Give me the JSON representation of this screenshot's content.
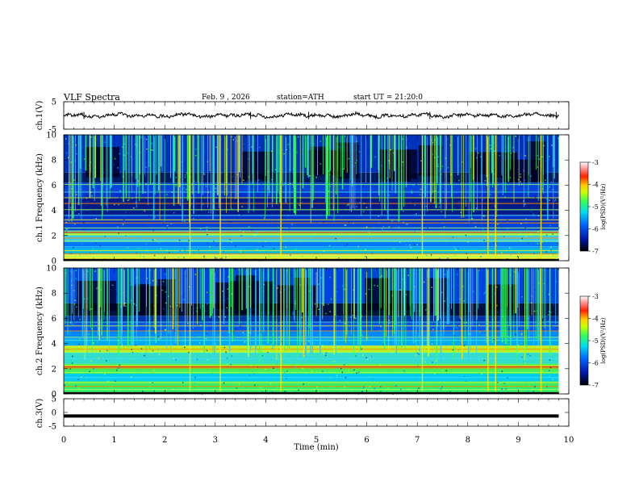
{
  "header": {
    "title": "VLF Spectra",
    "date": "Feb. 9 , 2026",
    "station": "station=ATH",
    "start_ut": "start UT = 21:20:0"
  },
  "chart_data": [
    {
      "type": "line",
      "id": "ch1-waveform",
      "ylabel": "ch.1(V)",
      "ylim": [
        -5,
        5
      ],
      "yticks": [
        "5",
        "-5"
      ],
      "xlim": [
        0,
        10
      ],
      "description_values": "noisy waveform centred near 0 V, amplitude about ±0.7 V"
    },
    {
      "type": "heatmap",
      "id": "ch1-spectrogram",
      "ylabel": "ch.1 Frequency (kHz)",
      "ylim": [
        0,
        10
      ],
      "yticks": [
        "0",
        "2",
        "4",
        "6",
        "8",
        "10"
      ],
      "xlim": [
        0,
        10
      ],
      "colorbar": {
        "label": "log(PSD)(V²/Hz)",
        "range": [
          -7,
          -3
        ],
        "ticks": [
          "-3",
          "-4",
          "-5",
          "-6",
          "-7"
        ]
      }
    },
    {
      "type": "heatmap",
      "id": "ch2-spectrogram",
      "ylabel": "ch.2 Frequency (kHz)",
      "ylim": [
        0,
        10
      ],
      "yticks": [
        "0",
        "2",
        "4",
        "6",
        "8",
        "10"
      ],
      "xlim": [
        0,
        10
      ],
      "colorbar": {
        "label": "log(PSD)(V²/Hz)",
        "range": [
          -7,
          -3
        ],
        "ticks": [
          "-3",
          "-4",
          "-5",
          "-6",
          "-7"
        ]
      }
    },
    {
      "type": "line",
      "id": "ch3-waveform",
      "ylabel": "ch.3(V)",
      "ylim": [
        -5,
        5
      ],
      "yticks": [
        "5",
        "0",
        "-5"
      ],
      "xlim": [
        0,
        10
      ],
      "y": -1.3
    }
  ],
  "xaxis": {
    "label": "Time (min)",
    "ticks": [
      "0",
      "1",
      "2",
      "3",
      "4",
      "5",
      "6",
      "7",
      "8",
      "9",
      "10"
    ],
    "data_end": 9.8
  },
  "colors": {
    "colormap": [
      "#000000",
      "#001a6e",
      "#0033cc",
      "#00aaff",
      "#33ff66",
      "#ffff00",
      "#ff8800",
      "#ff0000",
      "#ffffff"
    ],
    "waveform": "#000000"
  }
}
